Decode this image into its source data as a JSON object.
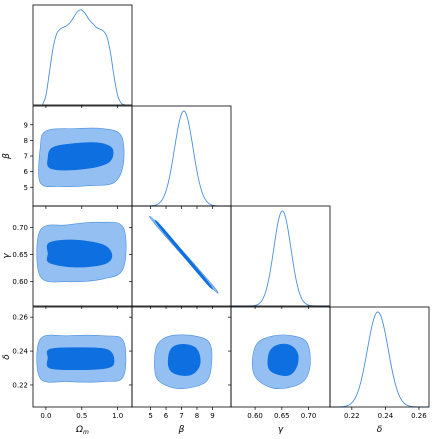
{
  "chart_data": {
    "type": "corner",
    "parameters": [
      {
        "key": "Om",
        "label_main": "Ω",
        "label_sub": "m",
        "range": [
          -0.18,
          1.2
        ],
        "ticks": [
          0.0,
          0.5,
          1.0
        ],
        "tick_labels": [
          "0.0",
          "0.5",
          "1.0"
        ]
      },
      {
        "key": "beta",
        "label_main": "β",
        "label_sub": "",
        "range": [
          3.8,
          10.2
        ],
        "ticks": [
          5,
          6,
          7,
          8,
          9
        ],
        "tick_labels": [
          "5",
          "6",
          "7",
          "8",
          "9"
        ]
      },
      {
        "key": "gamma",
        "label_main": "γ",
        "label_sub": "",
        "range": [
          0.555,
          0.74
        ],
        "ticks": [
          0.6,
          0.65,
          0.7
        ],
        "tick_labels": [
          "0.60",
          "0.65",
          "0.70"
        ]
      },
      {
        "key": "delta",
        "label_main": "δ",
        "label_sub": "",
        "range": [
          0.207,
          0.266
        ],
        "ticks": [
          0.22,
          0.24,
          0.26
        ],
        "tick_labels": [
          "0.22",
          "0.24",
          "0.26"
        ]
      }
    ],
    "marginals": [
      {
        "param": "Om",
        "x": [
          -0.05,
          0.0,
          0.05,
          0.1,
          0.15,
          0.2,
          0.25,
          0.3,
          0.35,
          0.4,
          0.45,
          0.5,
          0.55,
          0.6,
          0.65,
          0.7,
          0.75,
          0.8,
          0.85,
          0.9,
          0.95,
          1.0,
          1.05,
          1.1
        ],
        "y": [
          0.0,
          0.1,
          0.35,
          0.6,
          0.75,
          0.8,
          0.82,
          0.84,
          0.88,
          0.94,
          0.99,
          1.0,
          0.96,
          0.9,
          0.86,
          0.82,
          0.8,
          0.78,
          0.72,
          0.55,
          0.3,
          0.1,
          0.02,
          0.0
        ]
      },
      {
        "param": "beta",
        "mean": 7.15,
        "sd": 0.6,
        "x_range": [
          3.8,
          10.2
        ]
      },
      {
        "param": "gamma",
        "mean": 0.651,
        "sd": 0.016,
        "x_range": [
          0.555,
          0.74
        ]
      },
      {
        "param": "delta",
        "mean": 0.2355,
        "sd": 0.0062,
        "x_range": [
          0.207,
          0.266
        ]
      }
    ],
    "contours_2d": [
      {
        "x": "Om",
        "y": "beta",
        "outer": [
          [
            -0.08,
            5.3
          ],
          [
            0.2,
            5.05
          ],
          [
            0.6,
            5.1
          ],
          [
            0.95,
            5.3
          ],
          [
            1.08,
            6.5
          ],
          [
            1.05,
            8.3
          ],
          [
            0.8,
            8.75
          ],
          [
            0.4,
            8.75
          ],
          [
            0.0,
            8.6
          ],
          [
            -0.08,
            7.5
          ]
        ],
        "inner": [
          [
            0.05,
            6.25
          ],
          [
            0.3,
            6.1
          ],
          [
            0.7,
            6.3
          ],
          [
            0.9,
            6.7
          ],
          [
            0.92,
            7.5
          ],
          [
            0.7,
            7.85
          ],
          [
            0.3,
            7.75
          ],
          [
            0.08,
            7.5
          ],
          [
            0.03,
            6.9
          ]
        ]
      },
      {
        "x": "Om",
        "y": "gamma",
        "outer": [
          [
            -0.08,
            0.61
          ],
          [
            0.3,
            0.6
          ],
          [
            0.8,
            0.605
          ],
          [
            1.08,
            0.625
          ],
          [
            1.08,
            0.7
          ],
          [
            0.75,
            0.71
          ],
          [
            0.3,
            0.705
          ],
          [
            -0.08,
            0.695
          ]
        ],
        "inner": [
          [
            0.05,
            0.635
          ],
          [
            0.4,
            0.627
          ],
          [
            0.8,
            0.632
          ],
          [
            0.92,
            0.648
          ],
          [
            0.8,
            0.668
          ],
          [
            0.4,
            0.677
          ],
          [
            0.05,
            0.672
          ],
          [
            0.03,
            0.652
          ]
        ]
      },
      {
        "x": "Om",
        "y": "delta",
        "outer": [
          [
            -0.08,
            0.224
          ],
          [
            0.3,
            0.222
          ],
          [
            0.8,
            0.222
          ],
          [
            1.08,
            0.225
          ],
          [
            1.08,
            0.246
          ],
          [
            0.8,
            0.249
          ],
          [
            0.3,
            0.249
          ],
          [
            -0.08,
            0.247
          ]
        ],
        "inner": [
          [
            0.05,
            0.23
          ],
          [
            0.4,
            0.229
          ],
          [
            0.85,
            0.23
          ],
          [
            0.95,
            0.234
          ],
          [
            0.85,
            0.241
          ],
          [
            0.4,
            0.242
          ],
          [
            0.05,
            0.241
          ],
          [
            0.03,
            0.236
          ]
        ]
      },
      {
        "x": "beta",
        "y": "gamma",
        "outer": [
          [
            5.3,
            0.706
          ],
          [
            5.45,
            0.708
          ],
          [
            9.0,
            0.594
          ],
          [
            8.85,
            0.592
          ]
        ],
        "inner": [
          [
            5.6,
            0.7
          ],
          [
            5.72,
            0.702
          ],
          [
            8.7,
            0.6
          ],
          [
            8.58,
            0.598
          ]
        ]
      },
      {
        "x": "beta",
        "y": "delta",
        "outer": [
          [
            5.4,
            0.224
          ],
          [
            6.2,
            0.219
          ],
          [
            7.3,
            0.218
          ],
          [
            8.6,
            0.222
          ],
          [
            8.95,
            0.233
          ],
          [
            8.8,
            0.245
          ],
          [
            7.8,
            0.249
          ],
          [
            6.3,
            0.249
          ],
          [
            5.45,
            0.244
          ],
          [
            5.25,
            0.234
          ]
        ],
        "inner": [
          [
            6.25,
            0.229
          ],
          [
            6.8,
            0.226
          ],
          [
            7.6,
            0.226
          ],
          [
            8.1,
            0.23
          ],
          [
            8.2,
            0.236
          ],
          [
            7.9,
            0.242
          ],
          [
            7.1,
            0.244
          ],
          [
            6.4,
            0.242
          ],
          [
            6.15,
            0.236
          ]
        ]
      },
      {
        "x": "gamma",
        "y": "delta",
        "outer": [
          [
            0.6,
            0.225
          ],
          [
            0.625,
            0.219
          ],
          [
            0.655,
            0.218
          ],
          [
            0.69,
            0.222
          ],
          [
            0.703,
            0.232
          ],
          [
            0.697,
            0.245
          ],
          [
            0.67,
            0.249
          ],
          [
            0.635,
            0.249
          ],
          [
            0.605,
            0.245
          ],
          [
            0.595,
            0.235
          ]
        ],
        "inner": [
          [
            0.627,
            0.229
          ],
          [
            0.645,
            0.226
          ],
          [
            0.665,
            0.226
          ],
          [
            0.678,
            0.231
          ],
          [
            0.68,
            0.238
          ],
          [
            0.668,
            0.243
          ],
          [
            0.648,
            0.244
          ],
          [
            0.63,
            0.241
          ],
          [
            0.624,
            0.235
          ]
        ]
      }
    ],
    "colors": {
      "line": "#4a8fdc",
      "outer_fill": "#94bff2",
      "inner_fill": "#0e6fe0",
      "axes": "#000000"
    },
    "grid": false,
    "legend": "none"
  }
}
